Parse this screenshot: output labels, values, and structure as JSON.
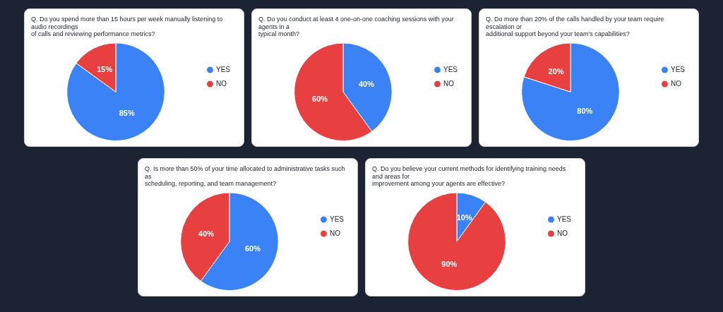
{
  "chart_data": [
    {
      "type": "pie",
      "title": "Q. Do you spend more than 15 hours per week manually listening to audio recordings\nof calls and reviewing performance metrics?",
      "categories": [
        "YES",
        "NO"
      ],
      "values": [
        85,
        15
      ],
      "value_labels": [
        "85%",
        "15%"
      ],
      "colors": [
        "#3b82f6",
        "#e84040"
      ],
      "data_labels": true,
      "legend": "right"
    },
    {
      "type": "pie",
      "title": "Q. Do you conduct at least 4 one-on-one coaching sessions with your agents in a\ntypical month?",
      "categories": [
        "YES",
        "NO"
      ],
      "values": [
        40,
        60
      ],
      "value_labels": [
        "40%",
        "60%"
      ],
      "colors": [
        "#3b82f6",
        "#e84040"
      ],
      "data_labels": true,
      "legend": "right"
    },
    {
      "type": "pie",
      "title": "Q. Do more than 20% of the calls handled by your team require escalation or\nadditional support beyond your team's capabilities?",
      "categories": [
        "YES",
        "NO"
      ],
      "values": [
        80,
        20
      ],
      "value_labels": [
        "80%",
        "20%"
      ],
      "colors": [
        "#3b82f6",
        "#e84040"
      ],
      "data_labels": true,
      "legend": "right"
    },
    {
      "type": "pie",
      "title": "Q. Is more than 50% of your time allocated to administrative tasks such as\nscheduling, reporting, and team management?",
      "categories": [
        "YES",
        "NO"
      ],
      "values": [
        60,
        40
      ],
      "value_labels": [
        "60%",
        "40%"
      ],
      "colors": [
        "#3b82f6",
        "#e84040"
      ],
      "data_labels": true,
      "legend": "right"
    },
    {
      "type": "pie",
      "title": "Q. Do you believe your current methods for identifying training needs and areas for\nimprovement among your agents are effective?",
      "categories": [
        "YES",
        "NO"
      ],
      "values": [
        10,
        90
      ],
      "value_labels": [
        "10%",
        "90%"
      ],
      "colors": [
        "#3b82f6",
        "#e84040"
      ],
      "data_labels": true,
      "legend": "right"
    }
  ]
}
